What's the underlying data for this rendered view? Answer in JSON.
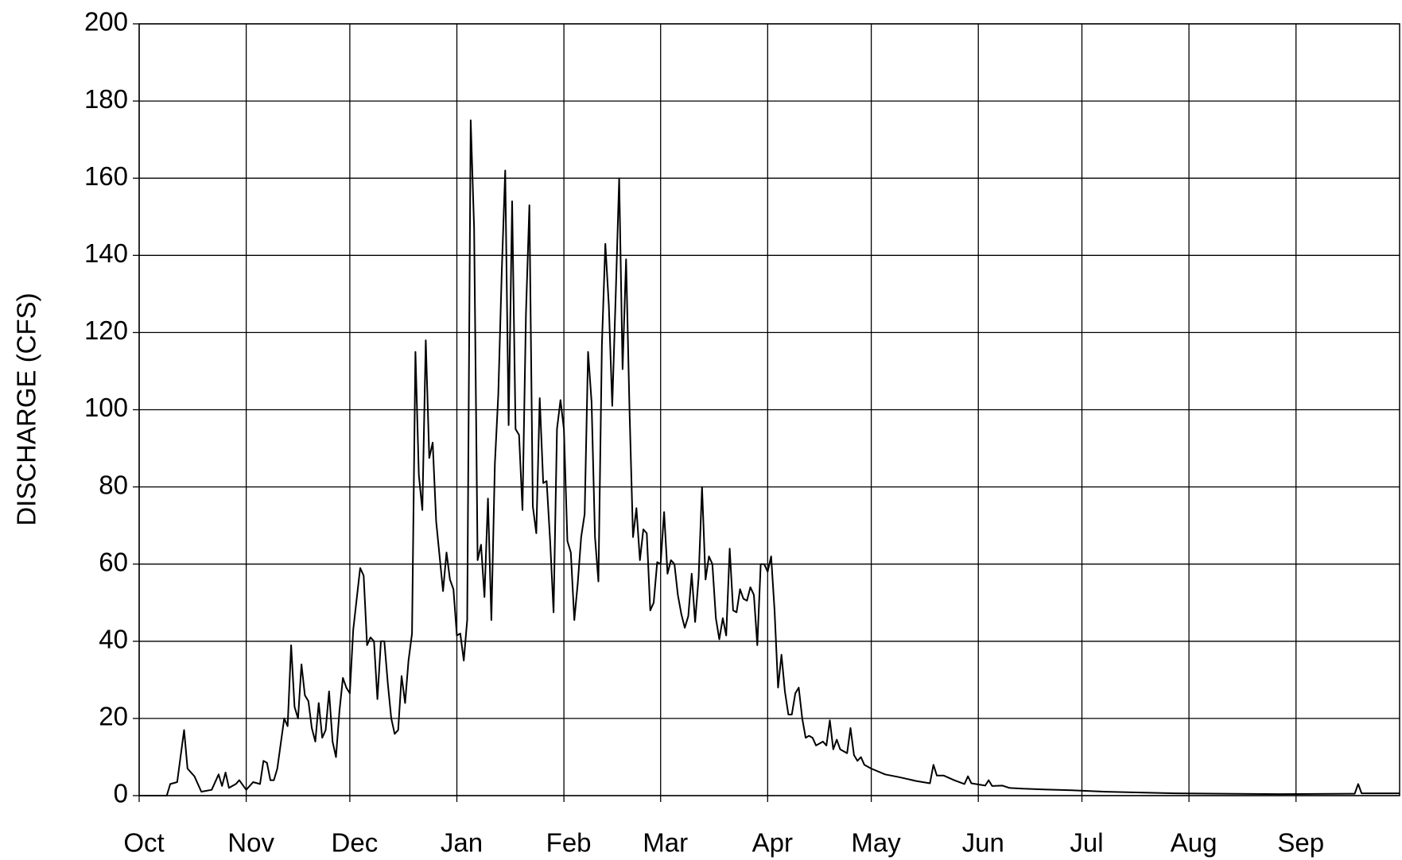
{
  "chart_data": {
    "type": "line",
    "y_label": "DISCHARGE (CFS)",
    "x": [
      0,
      8,
      9,
      11,
      13,
      14,
      16,
      18,
      21,
      23,
      24,
      25,
      26,
      28,
      29,
      31,
      33,
      35,
      36,
      37,
      38,
      39,
      40,
      42,
      43,
      44,
      45,
      46,
      47,
      48,
      49,
      50,
      51,
      52,
      53,
      54,
      55,
      56,
      57,
      58,
      59,
      60,
      61,
      62,
      64,
      65,
      66,
      67,
      68,
      69,
      70,
      71,
      72,
      73,
      74,
      75,
      76,
      77,
      78,
      79,
      80,
      81,
      82,
      83,
      84,
      85,
      86,
      87,
      88,
      89,
      90,
      91,
      92,
      93,
      94,
      95,
      96,
      97,
      98,
      99,
      100,
      101,
      102,
      103,
      104,
      105,
      106,
      107,
      108,
      109,
      110,
      111,
      112,
      113,
      114,
      115,
      116,
      117,
      118,
      119,
      120,
      121,
      122,
      123,
      124,
      125,
      126,
      127,
      128,
      129,
      130,
      131,
      132,
      133,
      134,
      135,
      136,
      137,
      138,
      139,
      140,
      141,
      142,
      143,
      144,
      145,
      146,
      147,
      148,
      149,
      150,
      151,
      152,
      153,
      154,
      155,
      156,
      157,
      158,
      159,
      160,
      161,
      162,
      163,
      164,
      165,
      166,
      167,
      168,
      169,
      170,
      171,
      172,
      173,
      174,
      175,
      176,
      177,
      178,
      179,
      180,
      181,
      182,
      183,
      184,
      185,
      186,
      187,
      188,
      189,
      190,
      191,
      192,
      193,
      194,
      195,
      196,
      197,
      198,
      199,
      200,
      201,
      202,
      203,
      204,
      205,
      206,
      207,
      208,
      209,
      210,
      212,
      216,
      220,
      225,
      229,
      230,
      231,
      233,
      236,
      239,
      240,
      241,
      245,
      246,
      247,
      250,
      252,
      256,
      262,
      270,
      280,
      300,
      330,
      350,
      352,
      353,
      354,
      365
    ],
    "values": [
      0,
      0,
      3,
      3.5,
      17,
      7,
      5,
      1,
      1.5,
      5.5,
      2.5,
      6,
      2,
      3,
      4,
      1.5,
      3.5,
      3,
      9,
      8.5,
      4,
      4,
      7,
      20,
      18,
      39,
      23,
      20,
      34,
      26,
      24.5,
      17.5,
      14,
      24,
      15,
      17,
      27,
      14,
      10,
      22,
      30.5,
      28,
      26.5,
      43,
      59,
      57,
      39,
      41,
      40,
      25,
      40,
      40,
      29,
      20,
      16,
      17,
      31,
      24,
      35,
      42,
      115,
      83,
      74,
      118,
      87.5,
      91.5,
      71,
      62,
      53,
      63,
      56,
      53.5,
      41.5,
      42,
      35,
      45.5,
      175,
      147,
      61,
      65,
      51.5,
      77,
      45.5,
      86,
      104,
      136,
      162,
      96,
      154,
      95,
      93.5,
      74,
      125,
      153,
      75,
      68,
      103,
      81,
      81.5,
      66,
      47.5,
      95,
      102.5,
      95,
      66,
      63,
      45.5,
      55,
      67,
      73,
      115,
      102,
      67,
      55.5,
      117,
      143,
      127,
      101,
      130,
      160,
      110.5,
      139,
      100,
      67,
      74.5,
      61,
      69,
      68,
      48,
      50,
      60.5,
      60,
      73.5,
      57.5,
      61,
      60,
      52,
      47,
      43.5,
      46.5,
      57.5,
      45,
      56.5,
      80,
      56,
      62,
      60,
      46,
      40.5,
      46,
      41.5,
      64,
      48,
      47.5,
      53.5,
      51,
      50.5,
      54,
      52,
      39,
      60,
      60,
      58,
      62,
      48,
      28,
      36.5,
      27,
      21,
      21,
      26.5,
      28,
      20,
      15,
      15.5,
      15,
      13,
      13.5,
      14,
      13,
      19.5,
      12,
      14.5,
      12,
      11.5,
      11,
      17.5,
      10.5,
      9,
      10,
      8,
      7,
      5.5,
      4.8,
      3.8,
      3.2,
      8,
      5.2,
      5.2,
      4,
      3,
      5,
      3.2,
      2.6,
      4,
      2.5,
      2.6,
      2,
      1.8,
      1.6,
      1.4,
      1,
      0.6,
      0.4,
      0.5,
      0.5,
      3,
      0.6,
      0.6
    ],
    "color": "#000000",
    "xlim": [
      0,
      365
    ],
    "xticks": [
      {
        "value": 0,
        "label": "Oct"
      },
      {
        "value": 31,
        "label": "Nov"
      },
      {
        "value": 61,
        "label": "Dec"
      },
      {
        "value": 92,
        "label": "Jan"
      },
      {
        "value": 123,
        "label": "Feb"
      },
      {
        "value": 151,
        "label": "Mar"
      },
      {
        "value": 182,
        "label": "Apr"
      },
      {
        "value": 212,
        "label": "May"
      },
      {
        "value": 243,
        "label": "Jun"
      },
      {
        "value": 273,
        "label": "Jul"
      },
      {
        "value": 304,
        "label": "Aug"
      },
      {
        "value": 335,
        "label": "Sep"
      }
    ],
    "ylim": [
      0,
      200
    ],
    "yticks": [
      0,
      20,
      40,
      60,
      80,
      100,
      120,
      140,
      160,
      180,
      200
    ],
    "grid": true
  }
}
